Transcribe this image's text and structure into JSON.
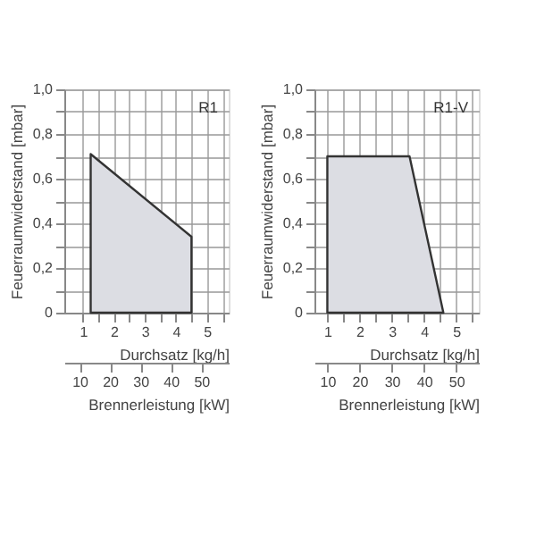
{
  "chart_data": [
    {
      "type": "area",
      "annotations": [
        "R1"
      ],
      "xlabel": "Durchsatz  [kg/h]",
      "ylabel": "Feuerraumwiderstand [mbar]",
      "x2label": "Brennerleistung  [kW]",
      "series": [
        {
          "color": "#dcdde3",
          "x": [
            1.25,
            4.5
          ],
          "values": [
            0.71,
            0.34
          ]
        }
      ],
      "xlim": [
        0.4,
        5.7
      ],
      "xticks": [
        1,
        {
          "value": 1.5,
          "label": null
        },
        2,
        {
          "value": 2.5,
          "label": null
        },
        3,
        {
          "value": 3.5,
          "label": null
        },
        4,
        {
          "value": 4.5,
          "label": null
        },
        5,
        {
          "value": 5.5,
          "label": null
        }
      ],
      "x2lim": [
        5,
        59
      ],
      "x2ticks": [
        10,
        20,
        30,
        40,
        50
      ],
      "ylim": [
        0,
        1.0
      ],
      "yticks": [
        0,
        {
          "value": 0.1,
          "label": null
        },
        {
          "value": 0.2,
          "label": "0,2"
        },
        {
          "value": 0.3,
          "label": null
        },
        {
          "value": 0.4,
          "label": "0,4"
        },
        {
          "value": 0.5,
          "label": null
        },
        {
          "value": 0.6,
          "label": "0,6"
        },
        {
          "value": 0.7,
          "label": null
        },
        {
          "value": 0.8,
          "label": "0,8"
        },
        {
          "value": 0.9,
          "label": null
        },
        {
          "value": 1.0,
          "label": "1,0"
        }
      ],
      "grid": true
    },
    {
      "type": "area",
      "annotations": [
        "R1-V"
      ],
      "xlabel": "Durchsatz  [kg/h]",
      "ylabel": "Feuerraumwiderstand [mbar]",
      "x2label": "Brennerleistung  [kW]",
      "series": [
        {
          "color": "#dcdde3",
          "x": [
            1.0,
            3.55,
            4.6
          ],
          "values": [
            0.7,
            0.7,
            0
          ]
        }
      ],
      "xlim": [
        0.6,
        5.7
      ],
      "xticks": [
        1,
        {
          "value": 1.5,
          "label": null
        },
        2,
        {
          "value": 2.5,
          "label": null
        },
        3,
        {
          "value": 3.5,
          "label": null
        },
        4,
        {
          "value": 4.5,
          "label": null
        },
        5,
        {
          "value": 5.5,
          "label": null
        }
      ],
      "x2lim": [
        6,
        57
      ],
      "x2ticks": [
        10,
        20,
        30,
        40,
        50
      ],
      "ylim": [
        0,
        1.0
      ],
      "yticks": [
        0,
        {
          "value": 0.1,
          "label": null
        },
        {
          "value": 0.2,
          "label": "0,2"
        },
        {
          "value": 0.3,
          "label": null
        },
        {
          "value": 0.4,
          "label": "0,4"
        },
        {
          "value": 0.5,
          "label": null
        },
        {
          "value": 0.6,
          "label": "0,6"
        },
        {
          "value": 0.7,
          "label": null
        },
        {
          "value": 0.8,
          "label": "0,8"
        },
        {
          "value": 0.9,
          "label": null
        },
        {
          "value": 1.0,
          "label": "1,0"
        }
      ],
      "grid": true
    }
  ]
}
